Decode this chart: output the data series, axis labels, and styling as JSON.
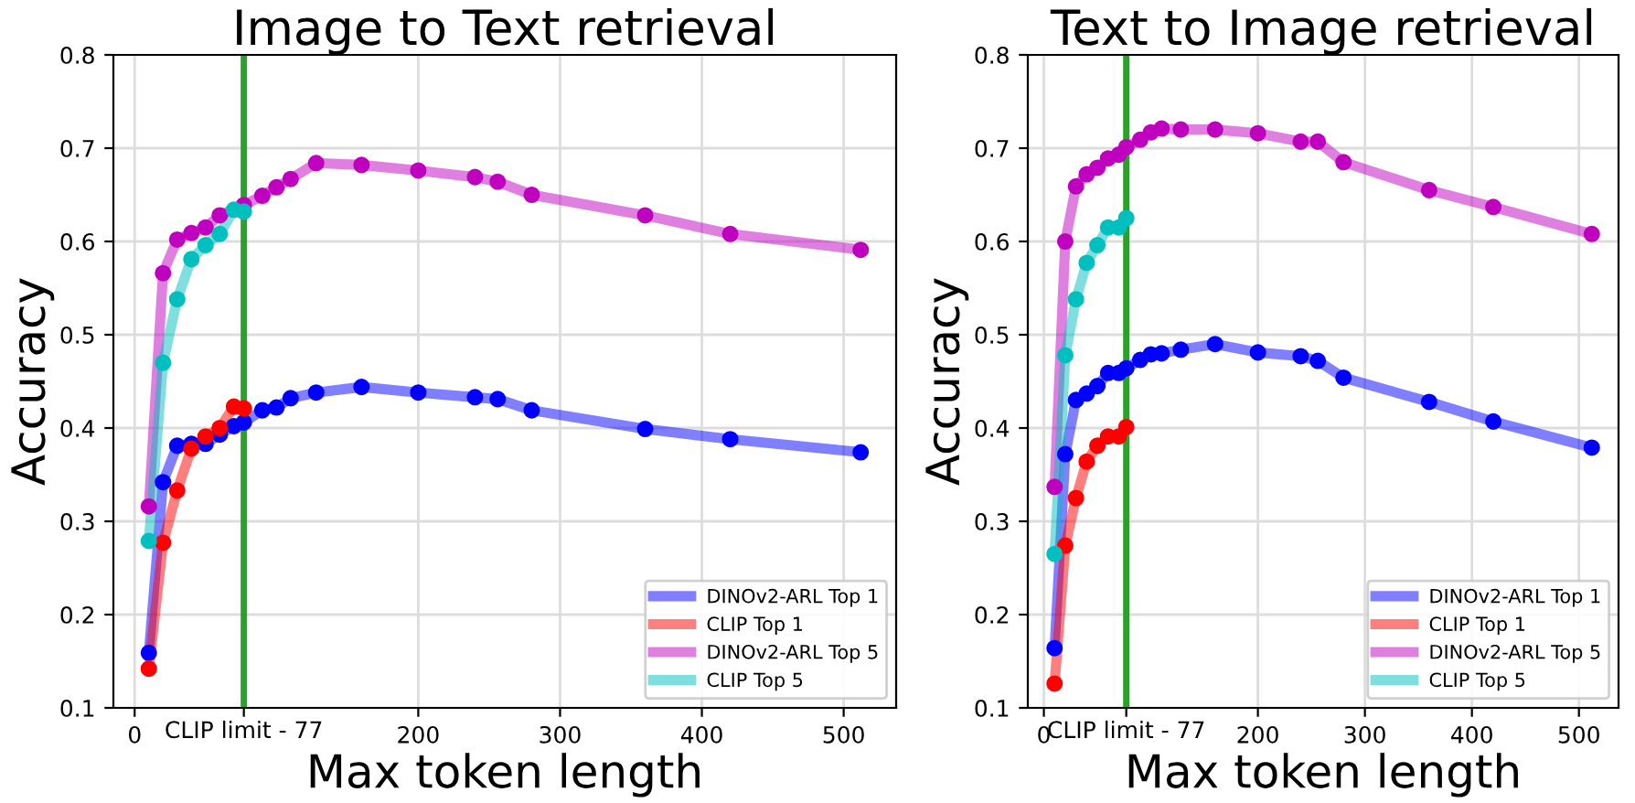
{
  "chart_data": [
    {
      "type": "line",
      "title": "Image to Text retrieval",
      "xlabel": "Max token length",
      "ylabel": "Accuracy",
      "xlim": [
        -15,
        537
      ],
      "ylim": [
        0.1,
        0.8
      ],
      "xticks": [
        0,
        {
          "value": 77,
          "label": null
        },
        200,
        300,
        400,
        500
      ],
      "yticks": [
        0.1,
        0.2,
        0.3,
        0.4,
        0.5,
        0.6,
        0.7,
        0.8
      ],
      "grid": true,
      "legend": "bottom right",
      "marker": "circle",
      "line_style": "solid",
      "ref_lines": [
        {
          "axis": "x",
          "value": 77,
          "color": "#2ca02c",
          "label": "CLIP limit - 77"
        }
      ],
      "series": [
        {
          "name": "DINOv2-ARL Top 1",
          "color": "#0000ff",
          "x": [
            10,
            20,
            30,
            40,
            50,
            60,
            70,
            77,
            90,
            100,
            110,
            128,
            160,
            200,
            240,
            256,
            280,
            360,
            420,
            512
          ],
          "values": [
            0.159,
            0.342,
            0.381,
            0.383,
            0.383,
            0.393,
            0.402,
            0.406,
            0.419,
            0.422,
            0.432,
            0.438,
            0.444,
            0.438,
            0.433,
            0.431,
            0.419,
            0.399,
            0.388,
            0.374
          ]
        },
        {
          "name": "CLIP Top 1",
          "color": "#ff0000",
          "x": [
            10,
            20,
            30,
            40,
            50,
            60,
            70,
            77
          ],
          "values": [
            0.142,
            0.277,
            0.333,
            0.378,
            0.391,
            0.4,
            0.423,
            0.421
          ]
        },
        {
          "name": "DINOv2-ARL Top 5",
          "color": "#bf00bf",
          "x": [
            10,
            20,
            30,
            40,
            50,
            60,
            77,
            90,
            100,
            110,
            128,
            160,
            200,
            240,
            256,
            280,
            360,
            420,
            512
          ],
          "values": [
            0.316,
            0.566,
            0.602,
            0.609,
            0.615,
            0.628,
            0.639,
            0.649,
            0.658,
            0.667,
            0.684,
            0.682,
            0.676,
            0.669,
            0.664,
            0.65,
            0.628,
            0.608,
            0.591
          ]
        },
        {
          "name": "CLIP Top 5",
          "color": "#00bfbf",
          "x": [
            10,
            20,
            30,
            40,
            50,
            60,
            70,
            77
          ],
          "values": [
            0.279,
            0.47,
            0.538,
            0.581,
            0.596,
            0.608,
            0.634,
            0.632
          ]
        }
      ]
    },
    {
      "type": "line",
      "title": "Text to Image retrieval",
      "xlabel": "Max token length",
      "ylabel": "Accuracy",
      "xlim": [
        -15,
        537
      ],
      "ylim": [
        0.1,
        0.8
      ],
      "xticks": [
        0,
        {
          "value": 77,
          "label": null
        },
        200,
        300,
        400,
        500
      ],
      "yticks": [
        0.1,
        0.2,
        0.3,
        0.4,
        0.5,
        0.6,
        0.7,
        0.8
      ],
      "grid": true,
      "legend": "bottom right",
      "marker": "circle",
      "line_style": "solid",
      "ref_lines": [
        {
          "axis": "x",
          "value": 77,
          "color": "#2ca02c",
          "label": "CLIP limit - 77"
        }
      ],
      "series": [
        {
          "name": "DINOv2-ARL Top 1",
          "color": "#0000ff",
          "x": [
            10,
            20,
            30,
            40,
            50,
            60,
            70,
            77,
            90,
            100,
            110,
            128,
            160,
            200,
            240,
            256,
            280,
            360,
            420,
            512
          ],
          "values": [
            0.164,
            0.372,
            0.43,
            0.437,
            0.445,
            0.459,
            0.459,
            0.464,
            0.473,
            0.479,
            0.48,
            0.484,
            0.49,
            0.481,
            0.477,
            0.472,
            0.454,
            0.428,
            0.407,
            0.379
          ]
        },
        {
          "name": "CLIP Top 1",
          "color": "#ff0000",
          "x": [
            10,
            20,
            30,
            40,
            50,
            60,
            70,
            77
          ],
          "values": [
            0.126,
            0.274,
            0.325,
            0.364,
            0.381,
            0.391,
            0.391,
            0.401
          ]
        },
        {
          "name": "DINOv2-ARL Top 5",
          "color": "#bf00bf",
          "x": [
            10,
            20,
            30,
            40,
            50,
            60,
            70,
            77,
            90,
            100,
            110,
            128,
            160,
            200,
            240,
            256,
            280,
            360,
            420,
            512
          ],
          "values": [
            0.337,
            0.6,
            0.659,
            0.672,
            0.679,
            0.689,
            0.693,
            0.701,
            0.709,
            0.717,
            0.721,
            0.72,
            0.72,
            0.716,
            0.707,
            0.707,
            0.685,
            0.655,
            0.637,
            0.608
          ]
        },
        {
          "name": "CLIP Top 5",
          "color": "#00bfbf",
          "x": [
            10,
            20,
            30,
            40,
            50,
            60,
            70,
            77
          ],
          "values": [
            0.265,
            0.478,
            0.538,
            0.577,
            0.596,
            0.615,
            0.615,
            0.625
          ]
        }
      ]
    }
  ]
}
